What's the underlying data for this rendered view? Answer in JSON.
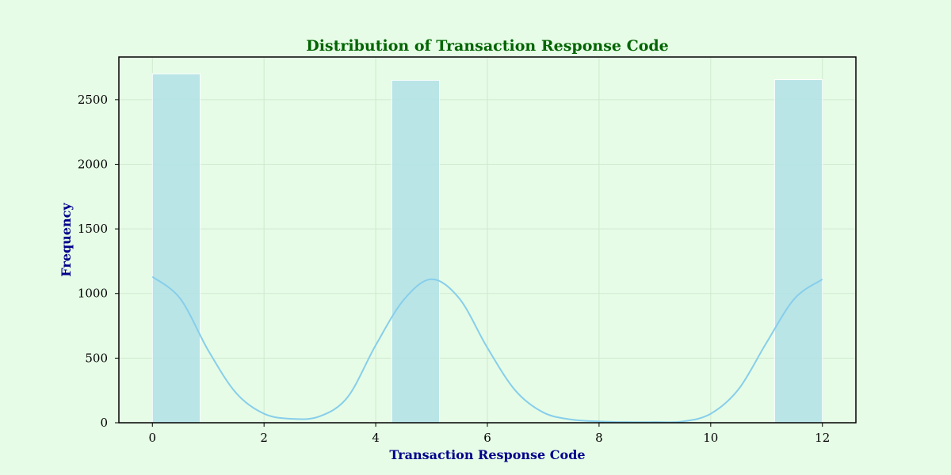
{
  "colors": {
    "background": "#e6fce6",
    "title": "#006400",
    "axis_label": "#00008b",
    "bar_fill": "#b0e0e6",
    "bar_stroke": "#ffffff",
    "kde_line": "#87ceeb",
    "grid": "#cfe9cf"
  },
  "chart_data": {
    "type": "bar",
    "title": "Distribution of Transaction Response Code",
    "xlabel": "Transaction Response Code",
    "ylabel": "Frequency",
    "xlim": [
      -0.6,
      12.6
    ],
    "ylim": [
      0,
      2830
    ],
    "grid": true,
    "x_ticks": [
      0,
      2,
      4,
      6,
      8,
      10,
      12
    ],
    "y_ticks": [
      0,
      500,
      1000,
      1500,
      2000,
      2500
    ],
    "bins": [
      {
        "x0": 0.0,
        "x1": 0.857,
        "count": 2700
      },
      {
        "x0": 4.286,
        "x1": 5.143,
        "count": 2650
      },
      {
        "x0": 11.143,
        "x1": 12.0,
        "count": 2655
      }
    ],
    "kde": {
      "x": [
        0,
        0.5,
        1,
        1.5,
        2,
        2.5,
        3,
        3.5,
        4,
        4.5,
        5,
        5.5,
        6,
        6.5,
        7,
        7.5,
        8,
        8.5,
        9,
        9.5,
        10,
        10.5,
        11,
        11.5,
        12
      ],
      "y": [
        1130,
        960,
        560,
        230,
        70,
        30,
        50,
        200,
        600,
        950,
        1110,
        960,
        580,
        250,
        80,
        25,
        10,
        5,
        5,
        10,
        70,
        260,
        620,
        960,
        1110
      ]
    }
  }
}
